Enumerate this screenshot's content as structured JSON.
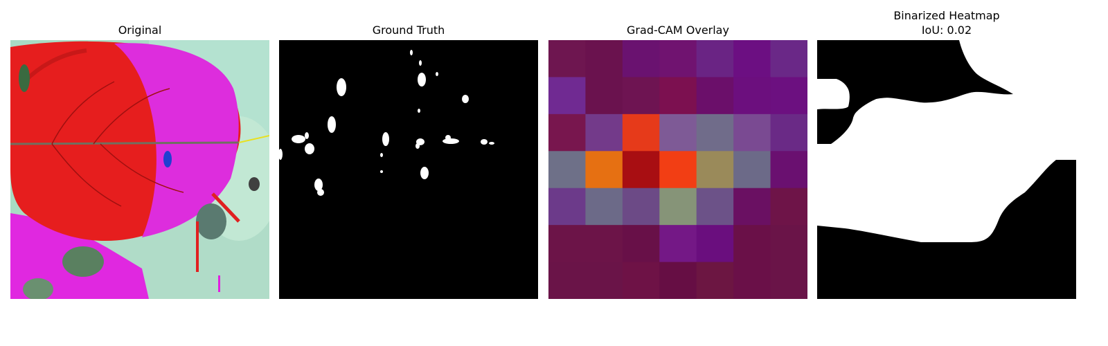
{
  "panels": [
    {
      "title": "Original"
    },
    {
      "title": "Ground Truth"
    },
    {
      "title": "Grad-CAM Overlay"
    },
    {
      "title": "Binarized Heatmap",
      "subtitle": "IoU: 0.02"
    }
  ],
  "gradcam_grid": [
    [
      "#6e1650",
      "#6a124e",
      "#6a1270",
      "#701370",
      "#6a2484",
      "#6c0f82",
      "#6a2887"
    ],
    [
      "#702a92",
      "#6a124e",
      "#6e1452",
      "#7c1050",
      "#6b0f6a",
      "#6c0f7e",
      "#6c1080"
    ],
    [
      "#78164e",
      "#733a8a",
      "#e63a1a",
      "#7e5a96",
      "#706c8a",
      "#7a4a92",
      "#6a2a86"
    ],
    [
      "#6e7088",
      "#e67012",
      "#a80e12",
      "#f23e14",
      "#9a8a5a",
      "#6c6a88",
      "#6a1070"
    ],
    [
      "#6c3a8a",
      "#6c6a88",
      "#6c4a86",
      "#869478",
      "#6c5288",
      "#6a1062",
      "#6e1448"
    ],
    [
      "#6c1448",
      "#6c1448",
      "#681048",
      "#741886",
      "#6a0e7e",
      "#6a1048",
      "#6a1448"
    ],
    [
      "#6a1448",
      "#6a1448",
      "#6e1246",
      "#660e44",
      "#6c1642",
      "#6a1048",
      "#6a1448"
    ]
  ]
}
